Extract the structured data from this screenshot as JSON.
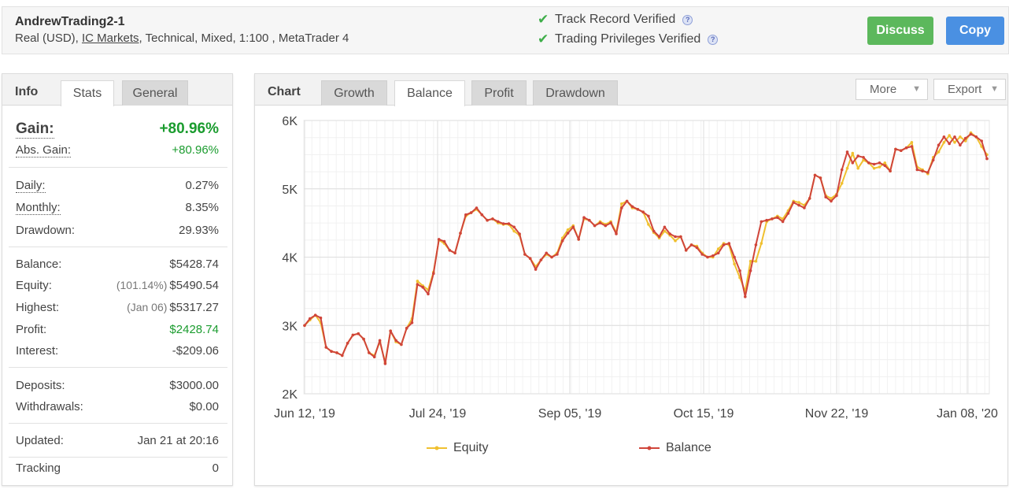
{
  "header": {
    "account_name": "AndrewTrading2-1",
    "info_prefix": "Real (USD), ",
    "broker": "IC Markets",
    "info_suffix": ", Technical, Mixed, 1:100 , MetaTrader 4",
    "verified": [
      "Track Record Verified",
      "Trading Privileges Verified"
    ],
    "discuss_label": "Discuss",
    "copy_label": "Copy",
    "colors": {
      "discuss": "#5cb85c",
      "copy": "#4a90e2",
      "check": "#3fae4a"
    }
  },
  "left_panel": {
    "title": "Info",
    "tabs": [
      "Stats",
      "General"
    ],
    "gain": {
      "label": "Gain:",
      "value": "+80.96%"
    },
    "abs_gain": {
      "label": "Abs. Gain:",
      "value": "+80.96%"
    },
    "daily": {
      "label": "Daily:",
      "value": "0.27%"
    },
    "monthly": {
      "label": "Monthly:",
      "value": "8.35%"
    },
    "drawdown": {
      "label": "Drawdown:",
      "value": "29.93%"
    },
    "balance": {
      "label": "Balance:",
      "value": "$5428.74"
    },
    "equity": {
      "label": "Equity:",
      "sub": "(101.14%)",
      "value": "$5490.54"
    },
    "highest": {
      "label": "Highest:",
      "sub": "(Jan 06)",
      "value": "$5317.27"
    },
    "profit": {
      "label": "Profit:",
      "value": "$2428.74"
    },
    "interest": {
      "label": "Interest:",
      "value": "-$209.06"
    },
    "deposits": {
      "label": "Deposits:",
      "value": "$3000.00"
    },
    "withdrawals": {
      "label": "Withdrawals:",
      "value": "$0.00"
    },
    "updated": {
      "label": "Updated:",
      "value": "Jan 21 at 20:16"
    },
    "tracking": {
      "label": "Tracking",
      "value": "0"
    }
  },
  "chart_panel": {
    "title": "Chart",
    "tabs": [
      "Growth",
      "Balance",
      "Profit",
      "Drawdown"
    ],
    "active_tab": "Balance",
    "more_label": "More",
    "export_label": "Export"
  },
  "chart_data": {
    "type": "line",
    "title": "",
    "xlabel": "",
    "ylabel": "",
    "y_ticks": [
      "2K",
      "3K",
      "4K",
      "5K",
      "6K"
    ],
    "ylim": [
      2000,
      6000
    ],
    "x_ticks": [
      "Jun 12, '19",
      "Jul 24, '19",
      "Sep 05, '19",
      "Oct 15, '19",
      "Nov 22, '19",
      "Jan 08, '20"
    ],
    "grid": true,
    "legend_position": "bottom",
    "series": [
      {
        "name": "Equity",
        "color": "#f0c030",
        "values": [
          3000,
          3080,
          3150,
          3040,
          2680,
          2620,
          2600,
          2560,
          2740,
          2860,
          2880,
          2800,
          2600,
          2560,
          2760,
          2460,
          2920,
          2760,
          2720,
          2960,
          3100,
          3650,
          3580,
          3520,
          3780,
          4250,
          4200,
          4100,
          4060,
          4350,
          4600,
          4650,
          4700,
          4620,
          4540,
          4560,
          4500,
          4480,
          4480,
          4380,
          4320,
          4040,
          3980,
          3860,
          3960,
          4040,
          4000,
          4060,
          4280,
          4400,
          4460,
          4260,
          4560,
          4540,
          4460,
          4520,
          4480,
          4520,
          4360,
          4780,
          4820,
          4720,
          4700,
          4660,
          4480,
          4360,
          4280,
          4380,
          4320,
          4240,
          4300,
          4100,
          4180,
          4160,
          4060,
          4000,
          4000,
          4120,
          4200,
          4180,
          3900,
          3700,
          3500,
          3940,
          3940,
          4200,
          4520,
          4560,
          4600,
          4560,
          4680,
          4820,
          4800,
          4760,
          4860,
          5200,
          5160,
          4900,
          4860,
          4920,
          5080,
          5300,
          5520,
          5300,
          5420,
          5380,
          5300,
          5320,
          5380,
          5260,
          5580,
          5560,
          5600,
          5680,
          5320,
          5280,
          5220,
          5460,
          5540,
          5680,
          5780,
          5680,
          5760,
          5700,
          5820,
          5760,
          5620,
          5500
        ]
      },
      {
        "name": "Balance",
        "color": "#d0453a",
        "values": [
          3000,
          3100,
          3150,
          3110,
          2680,
          2620,
          2600,
          2560,
          2740,
          2860,
          2880,
          2800,
          2600,
          2540,
          2780,
          2440,
          2920,
          2780,
          2720,
          2960,
          3040,
          3600,
          3560,
          3460,
          3760,
          4260,
          4230,
          4100,
          4060,
          4350,
          4620,
          4650,
          4720,
          4620,
          4540,
          4560,
          4520,
          4490,
          4490,
          4440,
          4340,
          4040,
          3980,
          3820,
          3960,
          4060,
          4000,
          4040,
          4240,
          4350,
          4440,
          4260,
          4580,
          4540,
          4460,
          4500,
          4460,
          4500,
          4340,
          4720,
          4820,
          4740,
          4700,
          4660,
          4600,
          4380,
          4300,
          4440,
          4340,
          4300,
          4300,
          4100,
          4180,
          4140,
          4040,
          4000,
          4020,
          4060,
          4180,
          4200,
          4000,
          3800,
          3420,
          3800,
          4180,
          4520,
          4540,
          4560,
          4580,
          4520,
          4640,
          4800,
          4760,
          4720,
          4860,
          5200,
          5160,
          4880,
          4820,
          4900,
          5280,
          5540,
          5380,
          5480,
          5460,
          5380,
          5360,
          5380,
          5340,
          5260,
          5580,
          5560,
          5600,
          5620,
          5280,
          5260,
          5240,
          5420,
          5640,
          5760,
          5660,
          5760,
          5640,
          5740,
          5800,
          5760,
          5700,
          5440
        ]
      }
    ]
  }
}
